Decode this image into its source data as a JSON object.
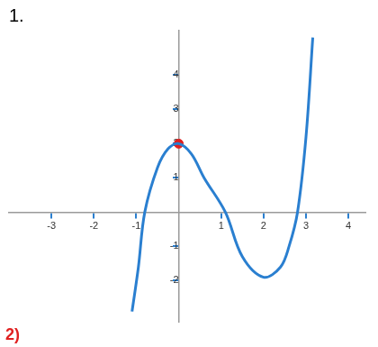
{
  "chart_data": {
    "type": "line",
    "title": "1.",
    "annotations": [
      "2)"
    ],
    "x": [
      -1.1,
      -0.95,
      -0.8,
      -0.5,
      -0.25,
      0,
      0.3,
      0.6,
      1.1,
      1.5,
      2.0,
      2.4,
      2.6,
      2.8,
      3.0,
      3.16
    ],
    "values": [
      -2.9,
      -1.6,
      0,
      1.3,
      1.85,
      2,
      1.7,
      1.0,
      0,
      -1.3,
      -1.9,
      -1.6,
      -1.0,
      0,
      2.2,
      5.1
    ],
    "color": "#2a7fd0",
    "marker": "none",
    "line_style": "solid",
    "points": [
      {
        "x": 0,
        "y": 2,
        "color": "#e02020"
      }
    ],
    "xlim": [
      -4,
      4.4
    ],
    "xticks": [
      -3,
      -2,
      -1,
      1,
      2,
      3,
      4
    ],
    "ylim": [
      -3.2,
      5.3
    ],
    "yticks": [
      -2,
      -1,
      1,
      2,
      3,
      4
    ],
    "grid": false
  }
}
